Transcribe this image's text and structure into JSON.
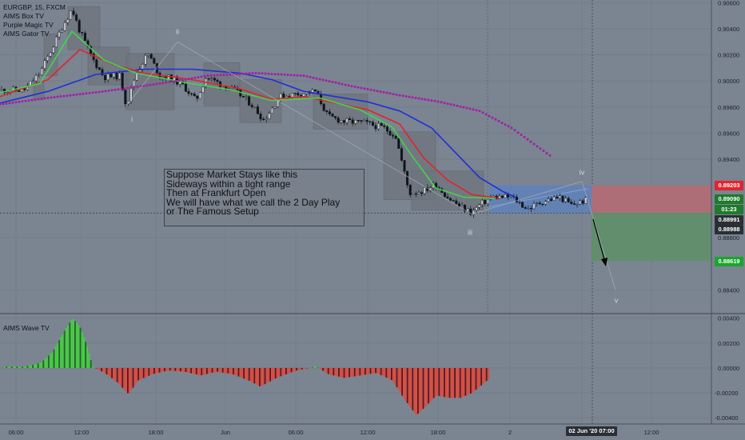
{
  "legend": {
    "symbol": "EURGBP, 15, FXCM",
    "indicators": [
      "AIMS Box TV",
      "Purple Magic TV",
      "AIMS Gator TV"
    ]
  },
  "sub_legend": "AIMS Wave TV",
  "annotation": {
    "lines": [
      "Suppose Market Stays like this",
      "Sideways within a tight range",
      "Then at Frankfurt Open",
      "We will have what we call the 2 Day Play",
      "or The Famous Setup"
    ]
  },
  "wave_labels": [
    "i",
    "ii",
    "iii",
    "iv",
    "v"
  ],
  "price_tags": {
    "red": "0.89203",
    "current": "0.89090",
    "countdown": "01:23",
    "dark1": "0.88991",
    "dark2": "0.88988",
    "green": "0.88619"
  },
  "crosshair_time": "02 Jun '20   07:00",
  "colors": {
    "background": "#7b8491",
    "up_candle": "#0f1419",
    "ma_blue": "#1f2fd6",
    "ma_red": "#e3232b",
    "ma_green": "#3fd649",
    "purple_dots": "#a11fa5",
    "box_fill": "#6d747e",
    "blue_zone": "#5b82c0",
    "red_zone": "#b46c74",
    "green_zone": "#5f8f6a",
    "osc_green": "#3fd63a",
    "osc_red": "#e0473a",
    "osc_dark": "#6b0f12"
  },
  "chart_data": {
    "type": "candlestick",
    "symbol": "EURGBP",
    "timeframe": "15",
    "x_ticks": [
      "06:00",
      "12:00",
      "18:00",
      "Jun",
      "06:00",
      "12:00",
      "18:00",
      "2",
      "12:00"
    ],
    "y_ticks": [
      "0.90600",
      "0.90400",
      "0.90200",
      "0.90000",
      "0.89800",
      "0.89600",
      "0.89400",
      "0.88800",
      "0.88400"
    ],
    "ylim": [
      0.8823,
      0.9062
    ],
    "osc_y_ticks": [
      "0.00400",
      "0.00200",
      "0.00000",
      "-0.00200",
      "-0.00400"
    ],
    "osc_ylim": [
      -0.0045,
      0.0043
    ],
    "close_path": [
      {
        "x": 0,
        "y": 0.8993
      },
      {
        "x": 30,
        "y": 0.8993
      },
      {
        "x": 50,
        "y": 0.9006
      },
      {
        "x": 65,
        "y": 0.9025
      },
      {
        "x": 80,
        "y": 0.9044
      },
      {
        "x": 90,
        "y": 0.9055
      },
      {
        "x": 100,
        "y": 0.9038
      },
      {
        "x": 115,
        "y": 0.9018
      },
      {
        "x": 130,
        "y": 0.9003
      },
      {
        "x": 150,
        "y": 0.9004
      },
      {
        "x": 158,
        "y": 0.8981
      },
      {
        "x": 170,
        "y": 0.9006
      },
      {
        "x": 185,
        "y": 0.9021
      },
      {
        "x": 200,
        "y": 0.9004
      },
      {
        "x": 215,
        "y": 0.9002
      },
      {
        "x": 230,
        "y": 0.8996
      },
      {
        "x": 245,
        "y": 0.8985
      },
      {
        "x": 258,
        "y": 0.9003
      },
      {
        "x": 275,
        "y": 0.8998
      },
      {
        "x": 295,
        "y": 0.8992
      },
      {
        "x": 315,
        "y": 0.8982
      },
      {
        "x": 330,
        "y": 0.897
      },
      {
        "x": 350,
        "y": 0.8988
      },
      {
        "x": 370,
        "y": 0.899
      },
      {
        "x": 395,
        "y": 0.8992
      },
      {
        "x": 410,
        "y": 0.8973
      },
      {
        "x": 430,
        "y": 0.8969
      },
      {
        "x": 455,
        "y": 0.8968
      },
      {
        "x": 480,
        "y": 0.8964
      },
      {
        "x": 495,
        "y": 0.8958
      },
      {
        "x": 505,
        "y": 0.8932
      },
      {
        "x": 512,
        "y": 0.8914
      },
      {
        "x": 530,
        "y": 0.8916
      },
      {
        "x": 545,
        "y": 0.8921
      },
      {
        "x": 560,
        "y": 0.8911
      },
      {
        "x": 575,
        "y": 0.8904
      },
      {
        "x": 590,
        "y": 0.8899
      },
      {
        "x": 600,
        "y": 0.8905
      },
      {
        "x": 615,
        "y": 0.8911
      },
      {
        "x": 640,
        "y": 0.8911
      },
      {
        "x": 660,
        "y": 0.8902
      },
      {
        "x": 680,
        "y": 0.8908
      },
      {
        "x": 700,
        "y": 0.8911
      },
      {
        "x": 715,
        "y": 0.8905
      },
      {
        "x": 735,
        "y": 0.8909
      }
    ],
    "ma_blue": [
      {
        "x": 0,
        "y": 0.8983
      },
      {
        "x": 60,
        "y": 0.8992
      },
      {
        "x": 120,
        "y": 0.9005
      },
      {
        "x": 180,
        "y": 0.9009
      },
      {
        "x": 240,
        "y": 0.9009
      },
      {
        "x": 300,
        "y": 0.9006
      },
      {
        "x": 340,
        "y": 0.9001
      },
      {
        "x": 380,
        "y": 0.8992
      },
      {
        "x": 420,
        "y": 0.8988
      },
      {
        "x": 460,
        "y": 0.8984
      },
      {
        "x": 500,
        "y": 0.8977
      },
      {
        "x": 540,
        "y": 0.8964
      },
      {
        "x": 570,
        "y": 0.8945
      },
      {
        "x": 600,
        "y": 0.8926
      },
      {
        "x": 630,
        "y": 0.8915
      },
      {
        "x": 645,
        "y": 0.8911
      }
    ],
    "ma_red": [
      {
        "x": 0,
        "y": 0.8988
      },
      {
        "x": 60,
        "y": 0.9001
      },
      {
        "x": 100,
        "y": 0.9024
      },
      {
        "x": 140,
        "y": 0.9013
      },
      {
        "x": 180,
        "y": 0.9006
      },
      {
        "x": 240,
        "y": 0.9001
      },
      {
        "x": 300,
        "y": 0.8994
      },
      {
        "x": 340,
        "y": 0.8986
      },
      {
        "x": 380,
        "y": 0.8988
      },
      {
        "x": 420,
        "y": 0.8983
      },
      {
        "x": 460,
        "y": 0.8978
      },
      {
        "x": 500,
        "y": 0.8967
      },
      {
        "x": 530,
        "y": 0.8941
      },
      {
        "x": 560,
        "y": 0.8924
      },
      {
        "x": 590,
        "y": 0.8913
      },
      {
        "x": 625,
        "y": 0.891
      }
    ],
    "ma_green": [
      {
        "x": 0,
        "y": 0.8991
      },
      {
        "x": 50,
        "y": 0.8998
      },
      {
        "x": 90,
        "y": 0.9038
      },
      {
        "x": 130,
        "y": 0.9016
      },
      {
        "x": 170,
        "y": 0.9006
      },
      {
        "x": 230,
        "y": 0.8999
      },
      {
        "x": 290,
        "y": 0.8993
      },
      {
        "x": 340,
        "y": 0.8985
      },
      {
        "x": 400,
        "y": 0.8987
      },
      {
        "x": 450,
        "y": 0.8978
      },
      {
        "x": 490,
        "y": 0.8965
      },
      {
        "x": 515,
        "y": 0.8943
      },
      {
        "x": 545,
        "y": 0.8918
      },
      {
        "x": 580,
        "y": 0.8911
      },
      {
        "x": 620,
        "y": 0.891
      }
    ],
    "purple_dots": [
      {
        "x": 0,
        "y": 0.8982
      },
      {
        "x": 60,
        "y": 0.8987
      },
      {
        "x": 130,
        "y": 0.8992
      },
      {
        "x": 200,
        "y": 0.8998
      },
      {
        "x": 260,
        "y": 0.9004
      },
      {
        "x": 320,
        "y": 0.9006
      },
      {
        "x": 380,
        "y": 0.9004
      },
      {
        "x": 440,
        "y": 0.8996
      },
      {
        "x": 500,
        "y": 0.8989
      },
      {
        "x": 550,
        "y": 0.8984
      },
      {
        "x": 600,
        "y": 0.8977
      },
      {
        "x": 640,
        "y": 0.8964
      },
      {
        "x": 690,
        "y": 0.8942
      }
    ],
    "wave_oscillator": [
      {
        "x": 5,
        "y": 0.0001
      },
      {
        "x": 30,
        "y": 0.0001
      },
      {
        "x": 50,
        "y": 0.0004
      },
      {
        "x": 65,
        "y": 0.0013
      },
      {
        "x": 80,
        "y": 0.003
      },
      {
        "x": 90,
        "y": 0.004
      },
      {
        "x": 100,
        "y": 0.0032
      },
      {
        "x": 108,
        "y": 0.0018
      },
      {
        "x": 115,
        "y": 0.0001
      },
      {
        "x": 130,
        "y": -0.0004
      },
      {
        "x": 145,
        "y": -0.0011
      },
      {
        "x": 160,
        "y": -0.0021
      },
      {
        "x": 172,
        "y": -0.001
      },
      {
        "x": 190,
        "y": -0.0005
      },
      {
        "x": 210,
        "y": -0.0002
      },
      {
        "x": 230,
        "y": -0.0003
      },
      {
        "x": 250,
        "y": -0.0006
      },
      {
        "x": 270,
        "y": -0.0003
      },
      {
        "x": 290,
        "y": -0.0005
      },
      {
        "x": 310,
        "y": -0.001
      },
      {
        "x": 325,
        "y": -0.0015
      },
      {
        "x": 345,
        "y": -0.0008
      },
      {
        "x": 370,
        "y": -0.0002
      },
      {
        "x": 395,
        "y": 0.0001
      },
      {
        "x": 410,
        "y": -0.0005
      },
      {
        "x": 430,
        "y": -0.0008
      },
      {
        "x": 450,
        "y": -0.0006
      },
      {
        "x": 470,
        "y": -0.0004
      },
      {
        "x": 490,
        "y": -0.001
      },
      {
        "x": 505,
        "y": -0.0025
      },
      {
        "x": 520,
        "y": -0.0038
      },
      {
        "x": 530,
        "y": -0.0032
      },
      {
        "x": 545,
        "y": -0.0022
      },
      {
        "x": 560,
        "y": -0.0024
      },
      {
        "x": 575,
        "y": -0.0024
      },
      {
        "x": 590,
        "y": -0.002
      },
      {
        "x": 605,
        "y": -0.0012
      },
      {
        "x": 612,
        "y": -0.0008
      }
    ],
    "boxes": [
      {
        "x1": 42,
        "x2": 55,
        "y1": 0.8986,
        "y2": 0.8999
      },
      {
        "x1": 55,
        "x2": 72,
        "y1": 0.9004,
        "y2": 0.9036
      },
      {
        "x1": 85,
        "x2": 125,
        "y1": 0.9024,
        "y2": 0.9057
      },
      {
        "x1": 110,
        "x2": 162,
        "y1": 0.8997,
        "y2": 0.9026
      },
      {
        "x1": 158,
        "x2": 218,
        "y1": 0.8978,
        "y2": 0.9021
      },
      {
        "x1": 255,
        "x2": 300,
        "y1": 0.8981,
        "y2": 0.9014
      },
      {
        "x1": 300,
        "x2": 352,
        "y1": 0.8968,
        "y2": 0.9001
      },
      {
        "x1": 392,
        "x2": 460,
        "y1": 0.8963,
        "y2": 0.899
      },
      {
        "x1": 480,
        "x2": 545,
        "y1": 0.8909,
        "y2": 0.8961
      },
      {
        "x1": 515,
        "x2": 605,
        "y1": 0.8901,
        "y2": 0.8931
      }
    ],
    "zones": {
      "consolidation": {
        "x1": 612,
        "x2": 740,
        "y1": 0.8899,
        "y2": 0.892
      },
      "target_stop": {
        "x1": 740,
        "x2": 890,
        "y1": 0.8899,
        "y2": 0.892
      },
      "target_profit": {
        "x1": 740,
        "x2": 890,
        "y1": 0.8862,
        "y2": 0.8899
      }
    }
  }
}
